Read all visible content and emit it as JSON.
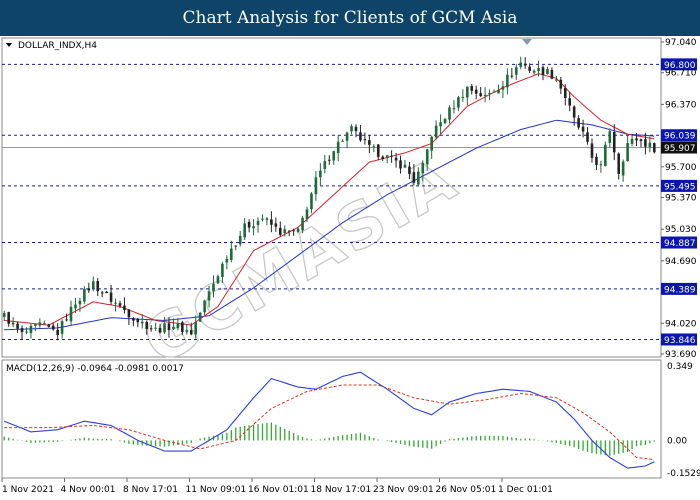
{
  "header": {
    "title": "Chart Analysis for Clients of GCM Asia"
  },
  "watermark": "GCMASIA",
  "colors": {
    "banner": "#0d4467",
    "candle_up": "#1e6a3a",
    "candle_down": "#222222",
    "ma_fast": "#d9202e",
    "ma_slow": "#2233cc",
    "macd_line": "#2a3fdd",
    "signal_line": "#e0301e",
    "histogram": "#33aa33",
    "level_line": "#1a1aa0",
    "label_bg": "#0b16b0",
    "current_bg": "#111111"
  },
  "chart_data": [
    {
      "type": "candlestick",
      "symbol_label": "DOLLAR_INDX,H4",
      "ylim": [
        93.69,
        97.04
      ],
      "y_ticks": [
        "97.040",
        "96.710",
        "96.370",
        "95.700",
        "95.370",
        "95.030",
        "94.690",
        "94.020",
        "93.690"
      ],
      "x_ticks": [
        "1 Nov 2021",
        "4 Nov 00:01",
        "8 Nov 17:01",
        "11 Nov 09:01",
        "16 Nov 01:01",
        "18 Nov 17:01",
        "23 Nov 09:01",
        "26 Nov 05:01",
        "1 Dec 01:01"
      ],
      "levels": [
        {
          "value": 96.8,
          "label": "96.800"
        },
        {
          "value": 96.039,
          "label": "96.039"
        },
        {
          "value": 95.495,
          "label": "95.495"
        },
        {
          "value": 94.887,
          "label": "94.887"
        },
        {
          "value": 94.389,
          "label": "94.389"
        },
        {
          "value": 93.846,
          "label": "93.846"
        }
      ],
      "current_price": {
        "value": 95.907,
        "label": "95.907"
      },
      "close_path": [
        [
          0,
          94.1
        ],
        [
          4,
          93.9
        ],
        [
          8,
          94.0
        ],
        [
          12,
          93.92
        ],
        [
          16,
          94.25
        ],
        [
          20,
          94.45
        ],
        [
          22,
          94.35
        ],
        [
          26,
          94.2
        ],
        [
          30,
          94.05
        ],
        [
          34,
          93.95
        ],
        [
          38,
          94.0
        ],
        [
          42,
          93.92
        ],
        [
          46,
          94.35
        ],
        [
          50,
          94.75
        ],
        [
          54,
          95.05
        ],
        [
          58,
          95.15
        ],
        [
          62,
          95.0
        ],
        [
          66,
          95.0
        ],
        [
          70,
          95.55
        ],
        [
          74,
          95.9
        ],
        [
          78,
          96.1
        ],
        [
          82,
          95.9
        ],
        [
          86,
          95.8
        ],
        [
          90,
          95.7
        ],
        [
          92,
          95.55
        ],
        [
          94,
          95.7
        ],
        [
          96,
          96.05
        ],
        [
          100,
          96.3
        ],
        [
          104,
          96.55
        ],
        [
          108,
          96.45
        ],
        [
          112,
          96.6
        ],
        [
          116,
          96.82
        ],
        [
          118,
          96.75
        ],
        [
          122,
          96.72
        ],
        [
          124,
          96.65
        ],
        [
          126,
          96.45
        ],
        [
          128,
          96.2
        ],
        [
          130,
          96.05
        ],
        [
          132,
          95.8
        ],
        [
          134,
          95.7
        ],
        [
          136,
          96.1
        ],
        [
          138,
          95.65
        ],
        [
          140,
          95.95
        ],
        [
          142,
          96.0
        ],
        [
          144,
          95.95
        ],
        [
          146,
          95.9
        ]
      ],
      "ma_fast": [
        [
          0,
          94.05
        ],
        [
          10,
          94.0
        ],
        [
          20,
          94.25
        ],
        [
          26,
          94.2
        ],
        [
          34,
          94.05
        ],
        [
          42,
          94.0
        ],
        [
          48,
          94.2
        ],
        [
          56,
          94.8
        ],
        [
          66,
          95.05
        ],
        [
          74,
          95.4
        ],
        [
          82,
          95.75
        ],
        [
          90,
          95.85
        ],
        [
          96,
          95.95
        ],
        [
          104,
          96.35
        ],
        [
          112,
          96.55
        ],
        [
          120,
          96.7
        ],
        [
          124,
          96.65
        ],
        [
          128,
          96.45
        ],
        [
          134,
          96.2
        ],
        [
          140,
          96.05
        ],
        [
          146,
          96.0
        ]
      ],
      "ma_slow": [
        [
          0,
          93.95
        ],
        [
          12,
          93.97
        ],
        [
          24,
          94.08
        ],
        [
          36,
          94.05
        ],
        [
          46,
          94.1
        ],
        [
          56,
          94.4
        ],
        [
          66,
          94.75
        ],
        [
          76,
          95.1
        ],
        [
          86,
          95.4
        ],
        [
          96,
          95.65
        ],
        [
          106,
          95.9
        ],
        [
          116,
          96.1
        ],
        [
          124,
          96.2
        ],
        [
          132,
          96.15
        ],
        [
          140,
          96.05
        ],
        [
          146,
          96.03
        ]
      ]
    },
    {
      "type": "macd",
      "label": "MACD(12,26,9) -0.0964 -0.0981 0.0017",
      "ylim": [
        -0.1529,
        0.349
      ],
      "y_ticks": [
        "0.349",
        "0.00",
        "-0.1529"
      ],
      "macd": [
        [
          0,
          0.09
        ],
        [
          6,
          0.04
        ],
        [
          12,
          0.05
        ],
        [
          18,
          0.09
        ],
        [
          24,
          0.07
        ],
        [
          30,
          0.0
        ],
        [
          36,
          -0.05
        ],
        [
          42,
          -0.05
        ],
        [
          50,
          0.05
        ],
        [
          56,
          0.2
        ],
        [
          60,
          0.29
        ],
        [
          66,
          0.25
        ],
        [
          70,
          0.24
        ],
        [
          76,
          0.3
        ],
        [
          80,
          0.32
        ],
        [
          86,
          0.24
        ],
        [
          92,
          0.15
        ],
        [
          96,
          0.12
        ],
        [
          100,
          0.18
        ],
        [
          106,
          0.22
        ],
        [
          112,
          0.24
        ],
        [
          118,
          0.23
        ],
        [
          124,
          0.18
        ],
        [
          128,
          0.1
        ],
        [
          132,
          0.0
        ],
        [
          136,
          -0.08
        ],
        [
          140,
          -0.13
        ],
        [
          144,
          -0.12
        ],
        [
          146,
          -0.1
        ]
      ],
      "signal": [
        [
          0,
          0.06
        ],
        [
          10,
          0.06
        ],
        [
          20,
          0.07
        ],
        [
          28,
          0.05
        ],
        [
          36,
          0.0
        ],
        [
          44,
          -0.04
        ],
        [
          52,
          0.0
        ],
        [
          60,
          0.15
        ],
        [
          68,
          0.23
        ],
        [
          76,
          0.26
        ],
        [
          84,
          0.26
        ],
        [
          92,
          0.2
        ],
        [
          100,
          0.17
        ],
        [
          108,
          0.19
        ],
        [
          116,
          0.22
        ],
        [
          124,
          0.2
        ],
        [
          130,
          0.13
        ],
        [
          136,
          0.04
        ],
        [
          142,
          -0.08
        ],
        [
          146,
          -0.09
        ]
      ]
    }
  ]
}
